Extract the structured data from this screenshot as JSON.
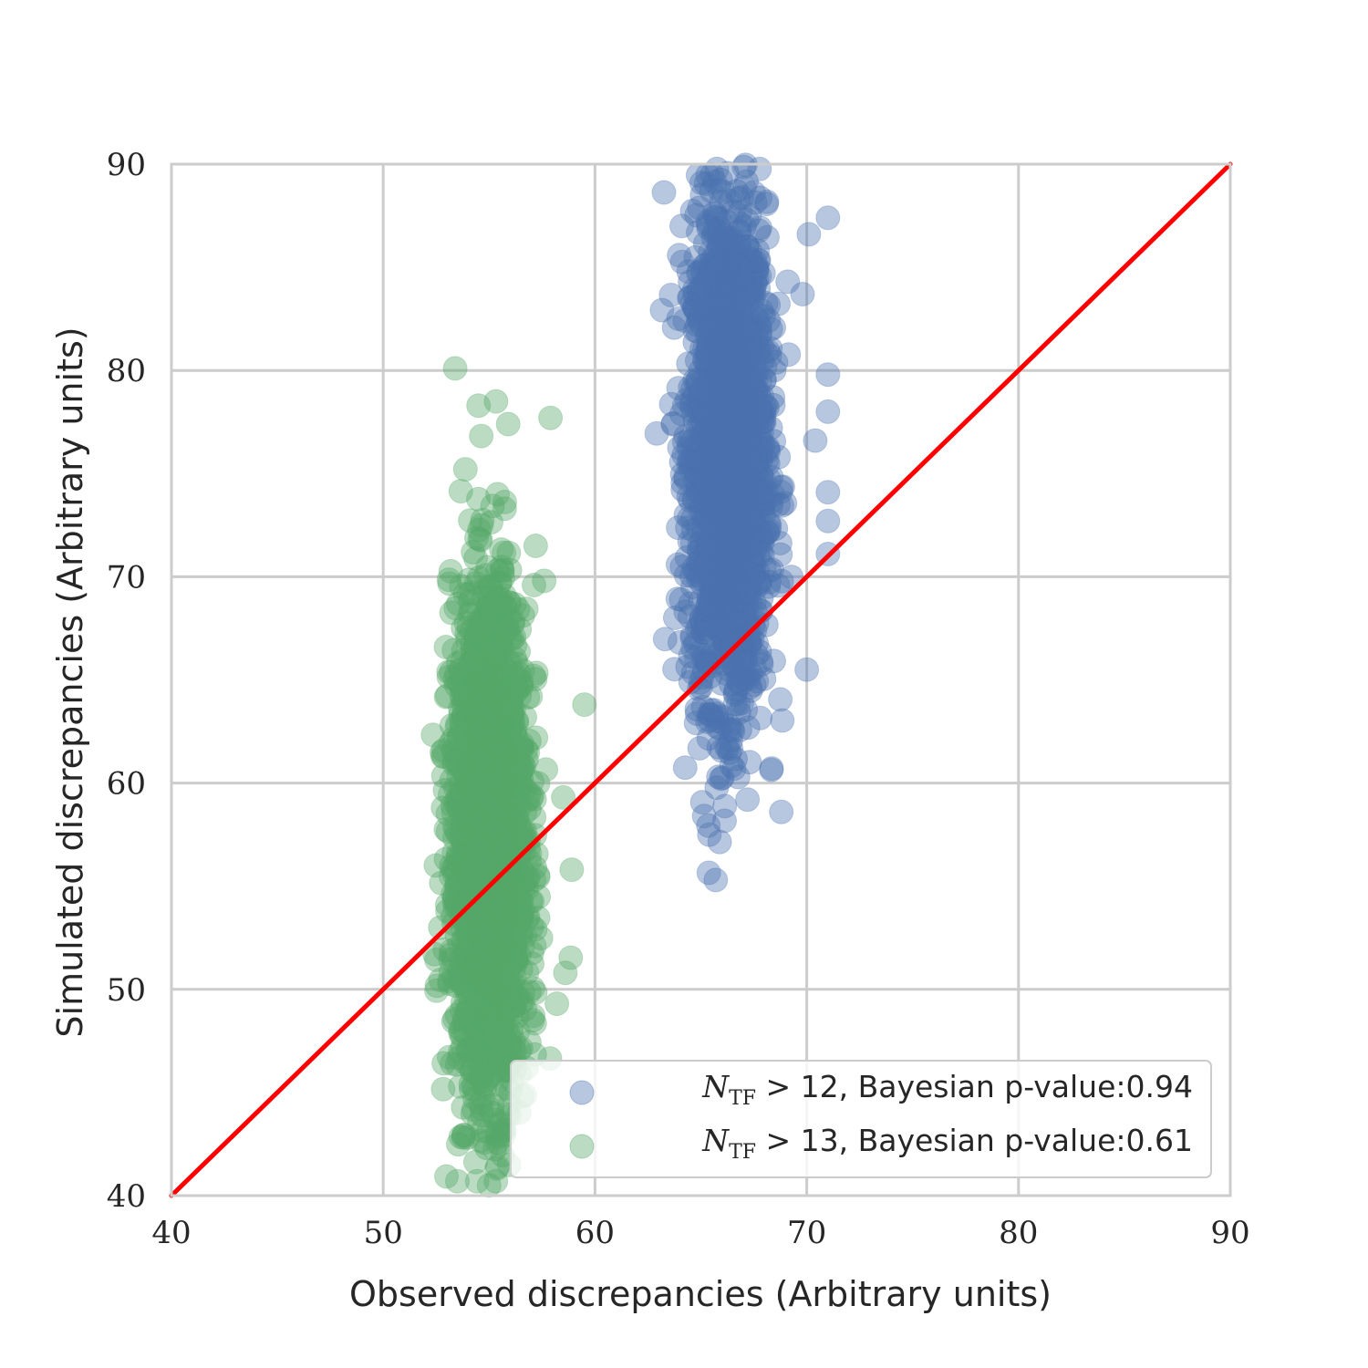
{
  "chart_data": {
    "type": "scatter",
    "xlabel": "Observed discrepancies (Arbitrary units)",
    "ylabel": "Simulated discrepancies (Arbitrary units)",
    "xlim": [
      40,
      90
    ],
    "ylim": [
      40,
      90
    ],
    "xticks": [
      "40",
      "50",
      "60",
      "70",
      "80",
      "90"
    ],
    "yticks": [
      "40",
      "50",
      "60",
      "70",
      "80",
      "90"
    ],
    "grid": true,
    "legend_position": "bottom-right",
    "reference_line": {
      "from": [
        40,
        40
      ],
      "to": [
        90,
        90
      ],
      "color": "#ff0000"
    },
    "series": [
      {
        "legend_math": "N",
        "legend_sub": "TF",
        "legend_text": " > 12, Bayesian p-value:0.94",
        "color": "#4c72b0",
        "cluster": {
          "x_mean": 66.3,
          "x_sd": 0.9,
          "y_mean": 76.0,
          "y_sd": 6.0,
          "y_min": 55.3,
          "y_max": 90.0
        },
        "outliers": [
          [
            71.0,
            87.4
          ],
          [
            70.1,
            86.6
          ],
          [
            69.8,
            83.7
          ],
          [
            71.0,
            79.8
          ],
          [
            71.0,
            78.0
          ],
          [
            71.0,
            74.1
          ],
          [
            71.0,
            72.7
          ],
          [
            71.0,
            71.1
          ],
          [
            70.0,
            65.5
          ],
          [
            68.8,
            58.6
          ],
          [
            67.2,
            59.2
          ],
          [
            65.4,
            57.5
          ],
          [
            65.7,
            55.3
          ],
          [
            69.1,
            84.3
          ],
          [
            70.4,
            76.6
          ]
        ]
      },
      {
        "legend_math": "N",
        "legend_sub": "TF",
        "legend_text": " > 13, Bayesian p-value:0.61",
        "color": "#55a868",
        "cluster": {
          "x_mean": 55.0,
          "x_sd": 0.9,
          "y_mean": 57.0,
          "y_sd": 6.0,
          "y_min": 40.5,
          "y_max": 80.1
        },
        "outliers": [
          [
            53.4,
            80.1
          ],
          [
            54.5,
            78.3
          ],
          [
            57.9,
            77.7
          ],
          [
            55.9,
            77.4
          ],
          [
            55.4,
            74.0
          ],
          [
            57.2,
            71.5
          ],
          [
            57.6,
            69.8
          ],
          [
            59.5,
            63.8
          ],
          [
            58.5,
            59.3
          ],
          [
            58.9,
            55.8
          ],
          [
            58.6,
            50.8
          ],
          [
            58.2,
            49.3
          ],
          [
            53.5,
            40.7
          ],
          [
            55.0,
            40.5
          ],
          [
            55.4,
            41.4
          ]
        ]
      }
    ]
  }
}
